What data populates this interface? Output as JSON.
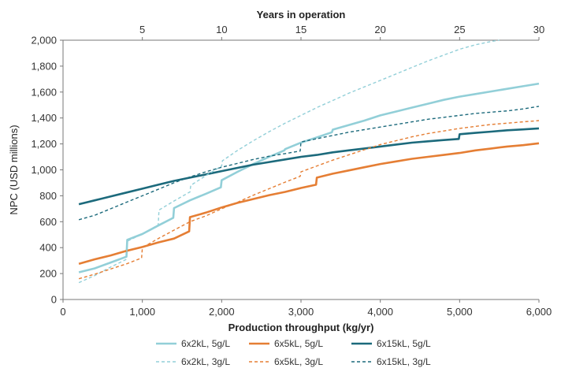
{
  "chart_data": {
    "type": "line",
    "xlabel": "Production throughput (kg/yr)",
    "x2label": "Years in operation",
    "ylabel": "NPC (USD millions)",
    "xlim": [
      0,
      6000
    ],
    "ylim": [
      0,
      2000
    ],
    "x2lim": [
      0,
      30
    ],
    "x_ticks": [
      0,
      1000,
      2000,
      3000,
      4000,
      5000,
      6000
    ],
    "x_tick_labels": [
      "0",
      "1,000",
      "2,000",
      "3,000",
      "4,000",
      "5,000",
      "6,000"
    ],
    "x2_ticks": [
      5,
      10,
      15,
      20,
      25,
      30
    ],
    "x2_tick_labels": [
      "5",
      "10",
      "15",
      "20",
      "25",
      "30"
    ],
    "y_ticks": [
      0,
      200,
      400,
      600,
      800,
      1000,
      1200,
      1400,
      1600,
      1800,
      2000
    ],
    "y_tick_labels": [
      "0",
      "200",
      "400",
      "600",
      "800",
      "1,000",
      "1,200",
      "1,400",
      "1,600",
      "1,800",
      "2,000"
    ],
    "grid": false,
    "legend_position": "bottom",
    "series": [
      {
        "name": "6x2kL, 5g/L",
        "color": "#92cfd8",
        "style": "solid",
        "x": [
          200,
          400,
          600,
          800,
          810,
          1000,
          1200,
          1390,
          1400,
          1600,
          1800,
          1990,
          2000,
          2200,
          2400,
          2600,
          2790,
          2800,
          3000,
          3200,
          3390,
          3400,
          3600,
          3800,
          4000,
          4200,
          4400,
          4600,
          4800,
          5000,
          5200,
          5400,
          5600,
          5800,
          6000
        ],
        "y": [
          210,
          240,
          285,
          330,
          460,
          505,
          570,
          630,
          705,
          765,
          815,
          865,
          920,
          985,
          1045,
          1100,
          1150,
          1160,
          1210,
          1250,
          1290,
          1310,
          1345,
          1380,
          1420,
          1450,
          1480,
          1510,
          1540,
          1565,
          1585,
          1605,
          1625,
          1645,
          1665
        ]
      },
      {
        "name": "6x5kL, 5g/L",
        "color": "#e57e34",
        "style": "solid",
        "x": [
          200,
          400,
          600,
          800,
          1000,
          1200,
          1400,
          1590,
          1600,
          1800,
          2000,
          2200,
          2400,
          2600,
          2800,
          3000,
          3190,
          3200,
          3400,
          3600,
          3800,
          4000,
          4200,
          4400,
          4600,
          4800,
          5000,
          5200,
          5400,
          5600,
          5800,
          6000
        ],
        "y": [
          275,
          310,
          340,
          375,
          405,
          440,
          470,
          525,
          635,
          670,
          710,
          745,
          775,
          805,
          830,
          860,
          885,
          940,
          970,
          995,
          1020,
          1045,
          1065,
          1085,
          1100,
          1115,
          1130,
          1150,
          1165,
          1180,
          1190,
          1205
        ]
      },
      {
        "name": "6x15kL, 5g/L",
        "color": "#1c6a7c",
        "style": "solid",
        "x": [
          200,
          400,
          600,
          800,
          1000,
          1200,
          1400,
          1600,
          1800,
          2000,
          2200,
          2400,
          2600,
          2800,
          3000,
          3200,
          3400,
          3600,
          3800,
          4000,
          4200,
          4400,
          4600,
          4800,
          4990,
          5000,
          5200,
          5400,
          5600,
          5800,
          6000
        ],
        "y": [
          735,
          765,
          795,
          825,
          855,
          885,
          915,
          940,
          965,
          990,
          1015,
          1040,
          1060,
          1080,
          1100,
          1115,
          1135,
          1150,
          1165,
          1180,
          1195,
          1210,
          1220,
          1230,
          1238,
          1275,
          1285,
          1295,
          1305,
          1312,
          1320
        ]
      },
      {
        "name": "6x2kL, 3g/L",
        "color": "#92cfd8",
        "style": "dashed",
        "x": [
          200,
          400,
          600,
          800,
          810,
          1000,
          1200,
          1210,
          1400,
          1600,
          1610,
          1800,
          2000,
          2010,
          2200,
          2400,
          2600,
          2800,
          3000,
          3200,
          3400,
          3600,
          3800,
          4000,
          4200,
          4400,
          4600,
          4800,
          5000,
          5200,
          5400,
          5500
        ],
        "y": [
          130,
          185,
          250,
          310,
          450,
          505,
          575,
          690,
          760,
          830,
          880,
          955,
          1030,
          1070,
          1150,
          1225,
          1295,
          1360,
          1420,
          1480,
          1535,
          1590,
          1640,
          1690,
          1740,
          1790,
          1840,
          1885,
          1930,
          1965,
          1990,
          2000
        ]
      },
      {
        "name": "6x5kL, 3g/L",
        "color": "#e57e34",
        "style": "dashed",
        "x": [
          200,
          400,
          600,
          800,
          990,
          1000,
          1200,
          1400,
          1600,
          1800,
          2000,
          2200,
          2400,
          2600,
          2800,
          2990,
          3000,
          3200,
          3400,
          3600,
          3800,
          4000,
          4200,
          4400,
          4600,
          4800,
          5000,
          5200,
          5400,
          5600,
          5800,
          6000
        ],
        "y": [
          160,
          195,
          235,
          275,
          320,
          400,
          470,
          535,
          600,
          645,
          700,
          750,
          805,
          855,
          905,
          950,
          985,
          1030,
          1075,
          1115,
          1155,
          1195,
          1225,
          1255,
          1280,
          1300,
          1320,
          1335,
          1350,
          1360,
          1370,
          1380
        ]
      },
      {
        "name": "6x15kL, 3g/L",
        "color": "#1c6a7c",
        "style": "dashed",
        "x": [
          200,
          400,
          600,
          800,
          1000,
          1200,
          1400,
          1600,
          1800,
          2000,
          2200,
          2400,
          2600,
          2800,
          2990,
          3000,
          3200,
          3400,
          3600,
          3800,
          4000,
          4200,
          4400,
          4600,
          4800,
          5000,
          5200,
          5400,
          5600,
          5800,
          6000
        ],
        "y": [
          615,
          650,
          700,
          750,
          800,
          850,
          900,
          945,
          985,
          1020,
          1050,
          1080,
          1105,
          1125,
          1145,
          1215,
          1240,
          1265,
          1290,
          1310,
          1330,
          1350,
          1370,
          1390,
          1405,
          1420,
          1435,
          1445,
          1455,
          1470,
          1490
        ]
      }
    ]
  }
}
